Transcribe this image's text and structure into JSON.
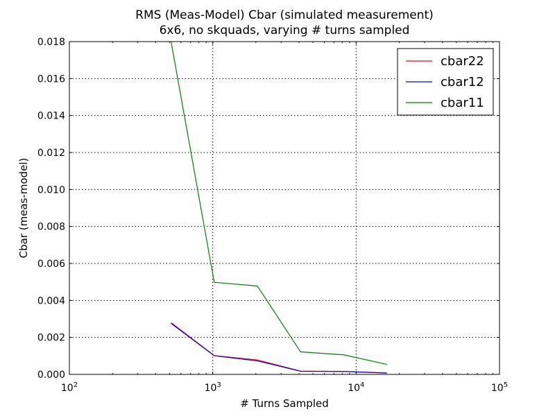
{
  "chart_data": {
    "type": "line",
    "title": "RMS (Meas-Model) Cbar (simulated measurement)",
    "subtitle": "6x6, no skquads, varying # turns sampled",
    "xlabel": "# Turns Sampled",
    "ylabel": "Cbar (meas-model)",
    "xscale": "log",
    "xlim": [
      100,
      100000
    ],
    "ylim": [
      0,
      0.018
    ],
    "grid": true,
    "legend_position": "top-right",
    "xticks": [
      {
        "value": 100,
        "base": "10",
        "exp": "2"
      },
      {
        "value": 1000,
        "base": "10",
        "exp": "3"
      },
      {
        "value": 10000,
        "base": "10",
        "exp": "4"
      },
      {
        "value": 100000,
        "base": "10",
        "exp": "5"
      }
    ],
    "yticks": [
      {
        "value": 0,
        "label": "0.000"
      },
      {
        "value": 0.002,
        "label": "0.002"
      },
      {
        "value": 0.004,
        "label": "0.004"
      },
      {
        "value": 0.006,
        "label": "0.006"
      },
      {
        "value": 0.008,
        "label": "0.008"
      },
      {
        "value": 0.01,
        "label": "0.010"
      },
      {
        "value": 0.012,
        "label": "0.012"
      },
      {
        "value": 0.014,
        "label": "0.014"
      },
      {
        "value": 0.016,
        "label": "0.016"
      },
      {
        "value": 0.018,
        "label": "0.018"
      }
    ],
    "x": [
      512,
      1024,
      2048,
      4096,
      8192,
      16384
    ],
    "series": [
      {
        "name": "cbar22",
        "color": "#ff0000",
        "values": [
          0.0028,
          0.00102,
          0.00078,
          0.00018,
          0.00016,
          8e-05
        ]
      },
      {
        "name": "cbar12",
        "color": "#0000ff",
        "values": [
          0.00276,
          0.00101,
          0.00073,
          0.00017,
          0.00016,
          7e-05
        ]
      },
      {
        "name": "cbar11",
        "color": "#008000",
        "values": [
          0.018,
          0.00498,
          0.00478,
          0.00122,
          0.00106,
          0.00054
        ]
      }
    ]
  }
}
